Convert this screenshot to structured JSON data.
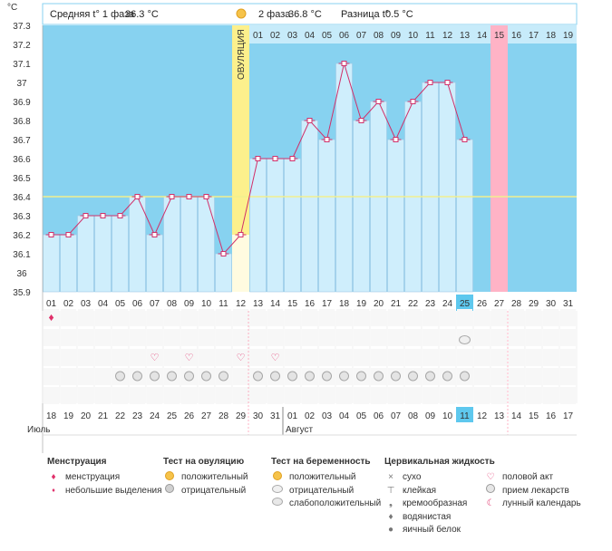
{
  "chart_data": {
    "type": "line",
    "y_unit": "°C",
    "ylim": [
      35.9,
      37.3
    ],
    "y_ticks": [
      "35.9",
      "36",
      "36.1",
      "36.2",
      "36.3",
      "36.4",
      "36.5",
      "36.6",
      "36.7",
      "36.8",
      "36.9",
      "37",
      "37.1",
      "37.2",
      "37.3"
    ],
    "cycle_days": [
      "01",
      "02",
      "03",
      "04",
      "05",
      "06",
      "07",
      "08",
      "09",
      "10",
      "11",
      "12",
      "13",
      "14",
      "15",
      "16",
      "17",
      "18",
      "19",
      "20",
      "21",
      "22",
      "23",
      "24",
      "25",
      "26",
      "27",
      "28",
      "29",
      "30",
      "31"
    ],
    "temperatures": [
      36.2,
      36.2,
      36.3,
      36.3,
      36.3,
      36.4,
      36.2,
      36.4,
      36.4,
      36.4,
      36.1,
      36.2,
      36.6,
      36.6,
      36.6,
      36.8,
      36.7,
      37.1,
      36.8,
      36.9,
      36.7,
      36.9,
      37.0,
      37.0,
      36.7
    ],
    "phase2_days": [
      "01",
      "02",
      "03",
      "04",
      "05",
      "06",
      "07",
      "08",
      "09",
      "10",
      "11",
      "12",
      "13",
      "14",
      "15",
      "16",
      "17",
      "18",
      "19"
    ],
    "cover_line": 36.4,
    "ovulation_day": "12",
    "ovulation_label": "ОВУЛЯЦИЯ",
    "highlight_day": "25",
    "period_expected_phase2_day": "15",
    "calendar_dates": [
      "18",
      "19",
      "20",
      "21",
      "22",
      "23",
      "24",
      "25",
      "26",
      "27",
      "28",
      "29",
      "30",
      "31",
      "01",
      "02",
      "03",
      "04",
      "05",
      "06",
      "07",
      "08",
      "09",
      "10",
      "11",
      "12",
      "13",
      "14",
      "15",
      "16",
      "17"
    ],
    "calendar_weekend_indexes": [
      2,
      3,
      9,
      10,
      16,
      17,
      23,
      24,
      30
    ],
    "calendar_today_index": 24,
    "months": {
      "july": "Июль",
      "august": "Август"
    },
    "header": {
      "phase1_label": "Средняя t° 1 фаза",
      "phase1_value": "36.3 °C",
      "phase2_label": "2 фаза",
      "phase2_value": "36.8 °C",
      "diff_label": "Разница t°",
      "diff_value": "0.5 °C"
    },
    "markers": {
      "menstruation_days": [
        1
      ],
      "heart_days": [
        7,
        9,
        12,
        14
      ],
      "pregnancy_test_negative_days": [
        25
      ],
      "pill_days": [
        5,
        6,
        7,
        8,
        9,
        10,
        11,
        13,
        14,
        15,
        16,
        17,
        18,
        19,
        20,
        21,
        22,
        23,
        24,
        25
      ]
    },
    "colors": {
      "plot_bg": "#87d2f0",
      "bar_fill": "#cfeefc",
      "bar_stroke": "#9fc9e4",
      "line": "#d0306a",
      "ovulation_band": "#fcf08c",
      "period_band": "#ffb3c6",
      "cover_line": "#f2ef8e",
      "today_cell": "#5ec8ee",
      "weekend_text": "#e0104a"
    }
  },
  "legend": {
    "menstruation": {
      "title": "Менструация",
      "items": [
        "менструация",
        "небольшие выделения"
      ]
    },
    "ovulation_test": {
      "title": "Тест на овуляцию",
      "items": [
        "положительный",
        "отрицательный"
      ]
    },
    "pregnancy_test": {
      "title": "Тест на беременность",
      "items": [
        "положительный",
        "отрицательный",
        "слабоположительный"
      ]
    },
    "cervical": {
      "title": "Цервикальная жидкость",
      "items": [
        "сухо",
        "клейкая",
        "кремообразная",
        "водянистая",
        "яичный белок"
      ]
    },
    "other": {
      "items": [
        "половой акт",
        "прием лекарств",
        "лунный календарь"
      ]
    }
  },
  "icons": {
    "drop": "droplet-icon",
    "small_drop": "small-droplet-icon",
    "heart": "heart-icon",
    "pill": "pill-icon",
    "sun": "sun-icon",
    "moon": "moon-icon"
  }
}
